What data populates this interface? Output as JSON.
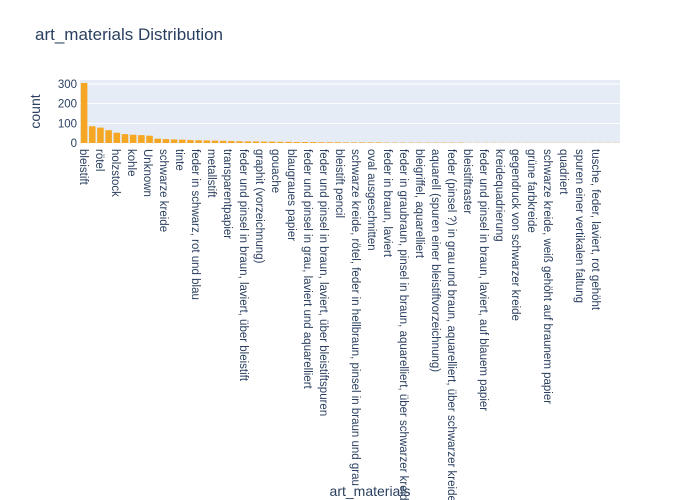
{
  "chart_data": {
    "type": "bar",
    "title": "art_materials Distribution",
    "xlabel": "art_materials",
    "ylabel": "count",
    "ylim": [
      0,
      320
    ],
    "yticks": [
      0,
      100,
      200,
      300
    ],
    "grid": true,
    "bar_color": "#f5a623",
    "plot_bg": "#e5ecf6",
    "tick_labels": [
      "bleistift",
      "rötel",
      "holzstock",
      "kohle",
      "Unknown",
      "schwarze kreide",
      "tinte",
      "feder in schwarz, rot und blau",
      "metallstift",
      "transparentpapier",
      "feder und pinsel in braun, laviert, über bleistift",
      "graphit (vorzeichnung)",
      "gouache",
      "blaugraues papier",
      "feder und pinsel in grau, laviert und aquarelliert",
      "feder und pinsel in braun, laviert, über bleistiftspuren",
      "bleistift pencil",
      "schwarze kreide, rötel, feder in hellbraun, pinsel in braun und grau",
      "oval ausgeschnitten",
      "feder in braun, laviert",
      "feder in graubraun, pinsel in braun, aquarelliert, über schwarzer kreide",
      "bleigriffel, aquarelliert",
      "aquarell (spuren einer bleistiftvorzeichnung)",
      "feder (pinsel ?) in grau und braun, aquarelliert, über schwarzer kreide",
      "bleistiftraster",
      "feder und pinsel in braun, laviert, auf blauem papier",
      "kreidequadrierung",
      "gegendruck von schwarzer kreide",
      "grüne farbkreide",
      "schwarze kreide, weiß gehöht auf braunem papier",
      "quadriert",
      "spuren einer vertikalen faltung",
      "tusche, feder, laviert, rot gehöht"
    ],
    "values": [
      305,
      85,
      78,
      65,
      52,
      45,
      42,
      40,
      37,
      22,
      20,
      18,
      17,
      15,
      14,
      13,
      12,
      11,
      10,
      9,
      8,
      8,
      7,
      7,
      6,
      6,
      5,
      5,
      5,
      4,
      4,
      4,
      3,
      3,
      3,
      3,
      3,
      2,
      2,
      2,
      2,
      2,
      2,
      2,
      2,
      2,
      2,
      1,
      1,
      1,
      1,
      1,
      1,
      1,
      1,
      1,
      1,
      1,
      1,
      1,
      1,
      1,
      1,
      1,
      1,
      1
    ]
  }
}
